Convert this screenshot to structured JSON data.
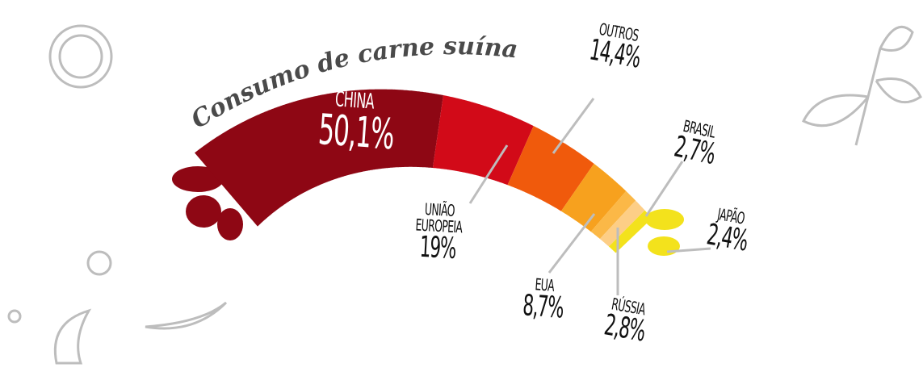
{
  "chart_data": {
    "type": "sausage",
    "title": "Consumo de carne suína",
    "categories": [
      "CHINA",
      "UNIÃO EUROPEIA",
      "OUTROS",
      "EUA",
      "RÚSSIA",
      "BRASIL",
      "JAPÃO"
    ],
    "values": [
      50.1,
      19,
      14.4,
      8.7,
      2.8,
      2.7,
      2.4
    ],
    "value_labels": [
      "50,1%",
      "19%",
      "14,4%",
      "8,7%",
      "2,8%",
      "2,7%",
      "2,4%"
    ],
    "colors": [
      "#8e0714",
      "#d20a18",
      "#f05a0c",
      "#f7a11e",
      "#fbb847",
      "#fdce86",
      "#f3e21c"
    ]
  }
}
